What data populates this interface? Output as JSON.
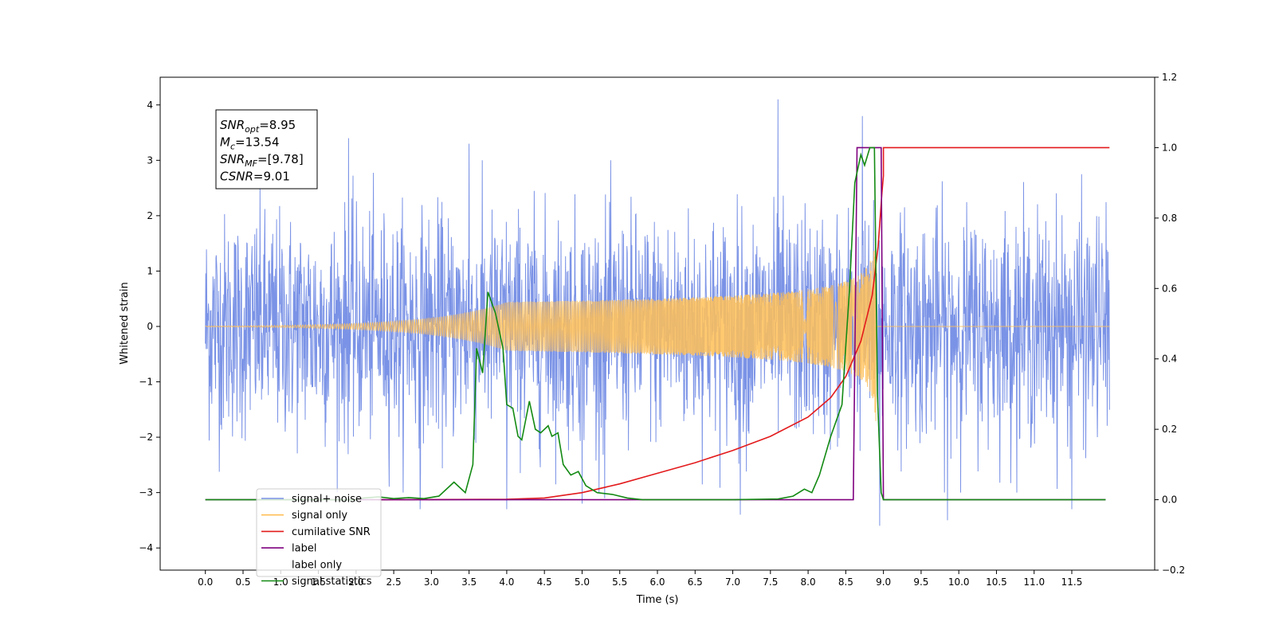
{
  "chart_data": {
    "type": "line",
    "title": "",
    "xlabel": "Time (s)",
    "ylabel": "Whitened strain",
    "y2label": "",
    "xlim": [
      -0.6,
      12.6
    ],
    "ylim": [
      -4.4,
      4.5
    ],
    "y2lim": [
      -0.2,
      1.2
    ],
    "x_ticks": [
      "0.0",
      "0.5",
      "1.0",
      "1.5",
      "2.0",
      "2.5",
      "3.0",
      "3.5",
      "4.0",
      "4.5",
      "5.0",
      "5.5",
      "6.0",
      "6.5",
      "7.0",
      "7.5",
      "8.0",
      "8.5",
      "9.0",
      "9.5",
      "10.0",
      "10.5",
      "11.0",
      "11.5"
    ],
    "y_ticks": [
      "−4",
      "−3",
      "−2",
      "−1",
      "0",
      "1",
      "2",
      "3",
      "4"
    ],
    "y2_ticks": [
      "−0.2",
      "0.0",
      "0.2",
      "0.4",
      "0.6",
      "0.8",
      "1.0",
      "1.2"
    ],
    "grid": false,
    "legend_position": "lower-left",
    "annotation": {
      "lines": [
        {
          "var": "SNR",
          "sub": "opt",
          "value": "=8.95"
        },
        {
          "var": "M",
          "sub": "c",
          "value": "=13.54"
        },
        {
          "var": "SNR",
          "sub": "MF",
          "value": "=[9.78]"
        },
        {
          "var": "CSNR",
          "sub": "",
          "value": "=9.01"
        }
      ]
    },
    "series": [
      {
        "name": "signal+ noise",
        "color": "#7b93e6",
        "axis": "left",
        "style": "noise",
        "x_range": [
          0.0,
          12.0
        ],
        "std": 1.0,
        "peaks": [
          [
            7.6,
            4.1
          ],
          [
            8.72,
            3.8
          ],
          [
            1.9,
            3.4
          ],
          [
            8.95,
            -3.6
          ],
          [
            7.1,
            -3.4
          ],
          [
            9.85,
            -3.5
          ],
          [
            11.5,
            -3.3
          ],
          [
            4.0,
            -3.3
          ],
          [
            2.85,
            -3.3
          ],
          [
            5.0,
            -3.2
          ],
          [
            5.3,
            -3.1
          ],
          [
            3.5,
            3.3
          ]
        ]
      },
      {
        "name": "signal only",
        "color": "#ffbf57",
        "axis": "left",
        "style": "chirp",
        "x_range": [
          0.0,
          12.0
        ],
        "merge_time": 8.9,
        "peak_amplitude": 1.75
      },
      {
        "name": "cumilative SNR",
        "color": "#e31a1c",
        "axis": "right",
        "points": [
          [
            2.3,
            0.0
          ],
          [
            4.0,
            0.001
          ],
          [
            4.5,
            0.005
          ],
          [
            5.0,
            0.02
          ],
          [
            5.5,
            0.045
          ],
          [
            6.0,
            0.075
          ],
          [
            6.5,
            0.105
          ],
          [
            7.0,
            0.14
          ],
          [
            7.5,
            0.18
          ],
          [
            8.0,
            0.235
          ],
          [
            8.3,
            0.29
          ],
          [
            8.5,
            0.35
          ],
          [
            8.7,
            0.45
          ],
          [
            8.85,
            0.58
          ],
          [
            8.93,
            0.72
          ],
          [
            8.98,
            0.87
          ],
          [
            9.0,
            0.92
          ],
          [
            9.0,
            1.0
          ],
          [
            12.0,
            1.0
          ]
        ]
      },
      {
        "name": "label",
        "color": "#7f007f",
        "axis": "right",
        "points": [
          [
            0.0,
            0.0
          ],
          [
            8.6,
            0.0
          ],
          [
            8.65,
            1.0
          ],
          [
            8.97,
            1.0
          ],
          [
            9.0,
            0.0
          ],
          [
            11.95,
            0.0
          ]
        ]
      },
      {
        "name": "signal statistics",
        "color": "#138a13",
        "axis": "right",
        "points": [
          [
            0.0,
            0.0
          ],
          [
            2.0,
            0.0
          ],
          [
            2.1,
            0.005
          ],
          [
            2.3,
            0.008
          ],
          [
            2.5,
            0.003
          ],
          [
            2.7,
            0.006
          ],
          [
            2.9,
            0.003
          ],
          [
            3.1,
            0.01
          ],
          [
            3.3,
            0.05
          ],
          [
            3.45,
            0.02
          ],
          [
            3.55,
            0.1
          ],
          [
            3.6,
            0.43
          ],
          [
            3.68,
            0.36
          ],
          [
            3.75,
            0.59
          ],
          [
            3.85,
            0.53
          ],
          [
            3.95,
            0.43
          ],
          [
            4.0,
            0.27
          ],
          [
            4.08,
            0.26
          ],
          [
            4.15,
            0.18
          ],
          [
            4.2,
            0.17
          ],
          [
            4.3,
            0.28
          ],
          [
            4.38,
            0.2
          ],
          [
            4.45,
            0.19
          ],
          [
            4.55,
            0.21
          ],
          [
            4.6,
            0.18
          ],
          [
            4.68,
            0.19
          ],
          [
            4.75,
            0.1
          ],
          [
            4.85,
            0.07
          ],
          [
            4.95,
            0.08
          ],
          [
            5.05,
            0.04
          ],
          [
            5.2,
            0.02
          ],
          [
            5.4,
            0.015
          ],
          [
            5.6,
            0.005
          ],
          [
            5.8,
            0.0
          ],
          [
            7.0,
            0.0
          ],
          [
            7.6,
            0.002
          ],
          [
            7.8,
            0.01
          ],
          [
            7.95,
            0.03
          ],
          [
            8.05,
            0.02
          ],
          [
            8.15,
            0.07
          ],
          [
            8.3,
            0.18
          ],
          [
            8.45,
            0.27
          ],
          [
            8.55,
            0.6
          ],
          [
            8.62,
            0.9
          ],
          [
            8.7,
            0.98
          ],
          [
            8.75,
            0.95
          ],
          [
            8.82,
            1.0
          ],
          [
            8.88,
            1.0
          ],
          [
            8.92,
            0.3
          ],
          [
            8.97,
            0.02
          ],
          [
            9.0,
            0.0
          ],
          [
            11.95,
            0.0
          ]
        ]
      }
    ],
    "legend_entries": [
      "signal+ noise",
      "signal only",
      "cumilative SNR",
      "label",
      "label only",
      "signal statistics"
    ]
  }
}
